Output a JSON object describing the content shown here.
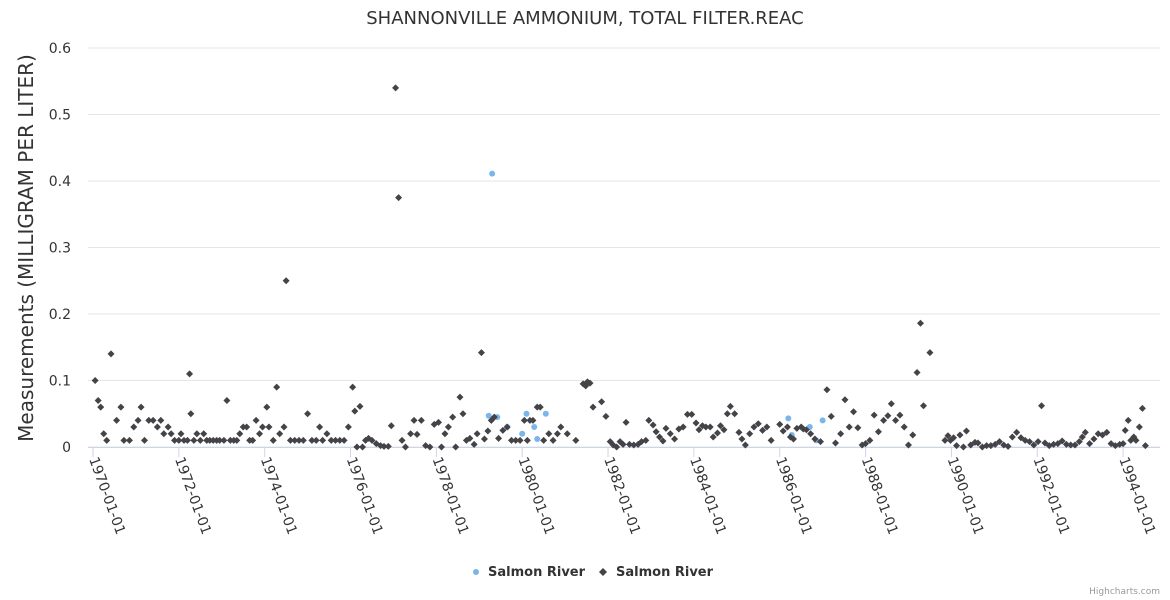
{
  "chart_data": {
    "type": "scatter",
    "title": "SHANNONVILLE AMMONIUM, TOTAL FILTER.REAC",
    "xlabel": "",
    "ylabel": "Measurements (MILLIGRAM PER LITER)",
    "ylim": [
      0,
      0.6
    ],
    "yticks": [
      "0",
      "0.1",
      "0.2",
      "0.3",
      "0.4",
      "0.5",
      "0.6"
    ],
    "xticks": [
      "1970-01-01",
      "1972-01-01",
      "1974-01-01",
      "1976-01-01",
      "1978-01-01",
      "1980-01-01",
      "1982-01-01",
      "1984-01-01",
      "1986-01-01",
      "1988-01-01",
      "1990-01-01",
      "1992-01-01",
      "1994-01-01"
    ],
    "xrange_years": [
      1969.9,
      1994.3
    ],
    "grid": true,
    "legend_position": "bottom-center",
    "credits": "Highcharts.com",
    "series": [
      {
        "name": "Salmon River",
        "color": "#7cb5ec",
        "marker": "circle",
        "points": [
          [
            1979.3,
            0.411
          ],
          [
            1979.22,
            0.047
          ],
          [
            1979.42,
            0.045
          ],
          [
            1979.65,
            0.03
          ],
          [
            1980.0,
            0.02
          ],
          [
            1980.1,
            0.05
          ],
          [
            1980.28,
            0.03
          ],
          [
            1980.35,
            0.012
          ],
          [
            1980.55,
            0.05
          ],
          [
            1986.2,
            0.043
          ],
          [
            1986.28,
            0.018
          ],
          [
            1986.7,
            0.03
          ],
          [
            1986.85,
            0.01
          ],
          [
            1987.0,
            0.04
          ]
        ]
      },
      {
        "name": "Salmon River",
        "color": "#434348",
        "marker": "diamond",
        "points": [
          [
            1970.05,
            0.1
          ],
          [
            1970.12,
            0.07
          ],
          [
            1970.18,
            0.06
          ],
          [
            1970.25,
            0.02
          ],
          [
            1970.32,
            0.01
          ],
          [
            1970.42,
            0.14
          ],
          [
            1970.55,
            0.04
          ],
          [
            1970.65,
            0.06
          ],
          [
            1970.72,
            0.01
          ],
          [
            1970.85,
            0.01
          ],
          [
            1970.95,
            0.03
          ],
          [
            1971.05,
            0.04
          ],
          [
            1971.12,
            0.06
          ],
          [
            1971.2,
            0.01
          ],
          [
            1971.3,
            0.04
          ],
          [
            1971.4,
            0.04
          ],
          [
            1971.5,
            0.03
          ],
          [
            1971.58,
            0.04
          ],
          [
            1971.65,
            0.02
          ],
          [
            1971.75,
            0.03
          ],
          [
            1971.82,
            0.02
          ],
          [
            1971.9,
            0.01
          ],
          [
            1972.0,
            0.01
          ],
          [
            1972.05,
            0.02
          ],
          [
            1972.12,
            0.01
          ],
          [
            1972.2,
            0.01
          ],
          [
            1972.25,
            0.11
          ],
          [
            1972.28,
            0.05
          ],
          [
            1972.35,
            0.01
          ],
          [
            1972.42,
            0.02
          ],
          [
            1972.5,
            0.01
          ],
          [
            1972.58,
            0.02
          ],
          [
            1972.65,
            0.01
          ],
          [
            1972.72,
            0.01
          ],
          [
            1972.8,
            0.01
          ],
          [
            1972.88,
            0.01
          ],
          [
            1972.95,
            0.01
          ],
          [
            1973.05,
            0.01
          ],
          [
            1973.12,
            0.07
          ],
          [
            1973.2,
            0.01
          ],
          [
            1973.28,
            0.01
          ],
          [
            1973.35,
            0.01
          ],
          [
            1973.42,
            0.02
          ],
          [
            1973.5,
            0.03
          ],
          [
            1973.58,
            0.03
          ],
          [
            1973.65,
            0.01
          ],
          [
            1973.72,
            0.01
          ],
          [
            1973.8,
            0.04
          ],
          [
            1973.88,
            0.02
          ],
          [
            1973.95,
            0.03
          ],
          [
            1974.05,
            0.06
          ],
          [
            1974.1,
            0.03
          ],
          [
            1974.2,
            0.01
          ],
          [
            1974.28,
            0.09
          ],
          [
            1974.35,
            0.02
          ],
          [
            1974.45,
            0.03
          ],
          [
            1974.5,
            0.25
          ],
          [
            1974.6,
            0.01
          ],
          [
            1974.7,
            0.01
          ],
          [
            1974.8,
            0.01
          ],
          [
            1974.9,
            0.01
          ],
          [
            1975.0,
            0.05
          ],
          [
            1975.1,
            0.01
          ],
          [
            1975.2,
            0.01
          ],
          [
            1975.28,
            0.03
          ],
          [
            1975.35,
            0.01
          ],
          [
            1975.45,
            0.02
          ],
          [
            1975.55,
            0.01
          ],
          [
            1975.65,
            0.01
          ],
          [
            1975.75,
            0.01
          ],
          [
            1975.85,
            0.01
          ],
          [
            1975.95,
            0.03
          ],
          [
            1976.05,
            0.09
          ],
          [
            1976.1,
            0.054
          ],
          [
            1976.15,
            0.0
          ],
          [
            1976.22,
            0.061
          ],
          [
            1976.28,
            0.0
          ],
          [
            1976.35,
            0.01
          ],
          [
            1976.42,
            0.013
          ],
          [
            1976.5,
            0.01
          ],
          [
            1976.6,
            0.005
          ],
          [
            1976.7,
            0.002
          ],
          [
            1976.78,
            0.001
          ],
          [
            1976.88,
            0.001
          ],
          [
            1976.95,
            0.032
          ],
          [
            1977.05,
            0.54
          ],
          [
            1977.12,
            0.375
          ],
          [
            1977.2,
            0.01
          ],
          [
            1977.28,
            0.0
          ],
          [
            1977.4,
            0.02
          ],
          [
            1977.48,
            0.04
          ],
          [
            1977.55,
            0.019
          ],
          [
            1977.65,
            0.04
          ],
          [
            1977.75,
            0.002
          ],
          [
            1977.85,
            0.0
          ],
          [
            1977.95,
            0.034
          ],
          [
            1978.05,
            0.037
          ],
          [
            1978.12,
            0.0
          ],
          [
            1978.2,
            0.02
          ],
          [
            1978.28,
            0.03
          ],
          [
            1978.38,
            0.045
          ],
          [
            1978.45,
            0.0
          ],
          [
            1978.55,
            0.075
          ],
          [
            1978.62,
            0.05
          ],
          [
            1978.7,
            0.01
          ],
          [
            1978.78,
            0.013
          ],
          [
            1978.88,
            0.004
          ],
          [
            1978.95,
            0.02
          ],
          [
            1979.05,
            0.142
          ],
          [
            1979.12,
            0.012
          ],
          [
            1979.2,
            0.024
          ],
          [
            1979.28,
            0.04
          ],
          [
            1979.35,
            0.045
          ],
          [
            1979.45,
            0.013
          ],
          [
            1979.55,
            0.025
          ],
          [
            1979.65,
            0.03
          ],
          [
            1979.75,
            0.01
          ],
          [
            1979.85,
            0.01
          ],
          [
            1979.95,
            0.01
          ],
          [
            1980.05,
            0.04
          ],
          [
            1980.12,
            0.01
          ],
          [
            1980.18,
            0.04
          ],
          [
            1980.25,
            0.04
          ],
          [
            1980.35,
            0.06
          ],
          [
            1980.42,
            0.06
          ],
          [
            1980.5,
            0.01
          ],
          [
            1980.62,
            0.02
          ],
          [
            1980.72,
            0.01
          ],
          [
            1980.82,
            0.02
          ],
          [
            1980.9,
            0.03
          ],
          [
            1981.05,
            0.02
          ],
          [
            1981.25,
            0.01
          ],
          [
            1981.42,
            0.095
          ],
          [
            1981.48,
            0.092
          ],
          [
            1981.52,
            0.098
          ],
          [
            1981.58,
            0.096
          ],
          [
            1981.65,
            0.06
          ],
          [
            1981.85,
            0.068
          ],
          [
            1981.95,
            0.046
          ],
          [
            1982.05,
            0.008
          ],
          [
            1982.12,
            0.003
          ],
          [
            1982.2,
            0.0
          ],
          [
            1982.28,
            0.008
          ],
          [
            1982.35,
            0.004
          ],
          [
            1982.42,
            0.037
          ],
          [
            1982.5,
            0.004
          ],
          [
            1982.6,
            0.003
          ],
          [
            1982.7,
            0.004
          ],
          [
            1982.78,
            0.008
          ],
          [
            1982.88,
            0.01
          ],
          [
            1982.95,
            0.04
          ],
          [
            1983.05,
            0.033
          ],
          [
            1983.12,
            0.023
          ],
          [
            1983.2,
            0.015
          ],
          [
            1983.28,
            0.009
          ],
          [
            1983.35,
            0.028
          ],
          [
            1983.45,
            0.02
          ],
          [
            1983.55,
            0.012
          ],
          [
            1983.65,
            0.027
          ],
          [
            1983.75,
            0.03
          ],
          [
            1983.85,
            0.049
          ],
          [
            1983.95,
            0.049
          ],
          [
            1984.05,
            0.036
          ],
          [
            1984.12,
            0.026
          ],
          [
            1984.2,
            0.032
          ],
          [
            1984.28,
            0.03
          ],
          [
            1984.38,
            0.03
          ],
          [
            1984.45,
            0.015
          ],
          [
            1984.55,
            0.021
          ],
          [
            1984.62,
            0.032
          ],
          [
            1984.7,
            0.026
          ],
          [
            1984.78,
            0.05
          ],
          [
            1984.85,
            0.061
          ],
          [
            1984.95,
            0.05
          ],
          [
            1985.05,
            0.022
          ],
          [
            1985.12,
            0.012
          ],
          [
            1985.2,
            0.003
          ],
          [
            1985.3,
            0.02
          ],
          [
            1985.4,
            0.03
          ],
          [
            1985.5,
            0.035
          ],
          [
            1985.6,
            0.025
          ],
          [
            1985.7,
            0.03
          ],
          [
            1985.8,
            0.01
          ],
          [
            1986.0,
            0.034
          ],
          [
            1986.08,
            0.024
          ],
          [
            1986.18,
            0.03
          ],
          [
            1986.25,
            0.015
          ],
          [
            1986.32,
            0.012
          ],
          [
            1986.4,
            0.028
          ],
          [
            1986.5,
            0.03
          ],
          [
            1986.55,
            0.027
          ],
          [
            1986.62,
            0.026
          ],
          [
            1986.72,
            0.02
          ],
          [
            1986.82,
            0.012
          ],
          [
            1986.95,
            0.008
          ],
          [
            1987.1,
            0.086
          ],
          [
            1987.2,
            0.046
          ],
          [
            1987.3,
            0.006
          ],
          [
            1987.42,
            0.02
          ],
          [
            1987.52,
            0.071
          ],
          [
            1987.62,
            0.03
          ],
          [
            1987.72,
            0.053
          ],
          [
            1987.82,
            0.029
          ],
          [
            1987.92,
            0.003
          ],
          [
            1988.0,
            0.005
          ],
          [
            1988.1,
            0.01
          ],
          [
            1988.2,
            0.048
          ],
          [
            1988.3,
            0.023
          ],
          [
            1988.42,
            0.04
          ],
          [
            1988.52,
            0.047
          ],
          [
            1988.6,
            0.065
          ],
          [
            1988.7,
            0.04
          ],
          [
            1988.8,
            0.048
          ],
          [
            1988.9,
            0.03
          ],
          [
            1989.0,
            0.003
          ],
          [
            1989.1,
            0.018
          ],
          [
            1989.2,
            0.112
          ],
          [
            1989.28,
            0.186
          ],
          [
            1989.35,
            0.062
          ],
          [
            1989.5,
            0.142
          ],
          [
            1989.85,
            0.01
          ],
          [
            1989.92,
            0.017
          ],
          [
            1989.98,
            0.01
          ],
          [
            1990.05,
            0.014
          ],
          [
            1990.12,
            0.002
          ],
          [
            1990.2,
            0.018
          ],
          [
            1990.28,
            0.0
          ],
          [
            1990.35,
            0.024
          ],
          [
            1990.45,
            0.003
          ],
          [
            1990.55,
            0.007
          ],
          [
            1990.62,
            0.006
          ],
          [
            1990.72,
            0.0
          ],
          [
            1990.82,
            0.002
          ],
          [
            1990.92,
            0.002
          ],
          [
            1991.02,
            0.004
          ],
          [
            1991.12,
            0.008
          ],
          [
            1991.22,
            0.003
          ],
          [
            1991.32,
            0.001
          ],
          [
            1991.42,
            0.015
          ],
          [
            1991.52,
            0.022
          ],
          [
            1991.62,
            0.014
          ],
          [
            1991.72,
            0.01
          ],
          [
            1991.82,
            0.008
          ],
          [
            1991.92,
            0.003
          ],
          [
            1992.02,
            0.008
          ],
          [
            1992.1,
            0.062
          ],
          [
            1992.18,
            0.006
          ],
          [
            1992.28,
            0.002
          ],
          [
            1992.38,
            0.004
          ],
          [
            1992.48,
            0.005
          ],
          [
            1992.58,
            0.009
          ],
          [
            1992.68,
            0.004
          ],
          [
            1992.78,
            0.003
          ],
          [
            1992.88,
            0.003
          ],
          [
            1992.98,
            0.008
          ],
          [
            1993.05,
            0.015
          ],
          [
            1993.12,
            0.022
          ],
          [
            1993.22,
            0.005
          ],
          [
            1993.32,
            0.012
          ],
          [
            1993.42,
            0.02
          ],
          [
            1993.52,
            0.018
          ],
          [
            1993.62,
            0.022
          ],
          [
            1993.72,
            0.005
          ],
          [
            1993.82,
            0.002
          ],
          [
            1993.92,
            0.004
          ],
          [
            1994.0,
            0.005
          ],
          [
            1994.05,
            0.025
          ],
          [
            1994.12,
            0.04
          ],
          [
            1994.18,
            0.01
          ],
          [
            1994.25,
            0.015
          ],
          [
            1994.3,
            0.01
          ],
          [
            1994.38,
            0.03
          ],
          [
            1994.45,
            0.058
          ],
          [
            1994.52,
            0.002
          ]
        ]
      }
    ]
  }
}
